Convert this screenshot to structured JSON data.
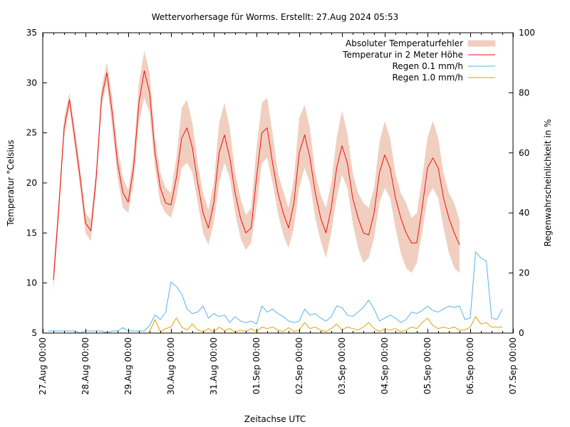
{
  "chart_data": {
    "type": "line",
    "title": "Wettervorhersage für Worms. Erstellt: 27.Aug 2024 05:53",
    "xlabel": "Zeitachse UTC",
    "ylabel": "Temperatur °Celsius",
    "y2label": "Regenwahrscheinlichkeit in %",
    "xlim_hours": [
      0,
      264
    ],
    "ylim": [
      5,
      35
    ],
    "y2lim": [
      0,
      100
    ],
    "xticks": [
      "27.Aug 00:00",
      "28.Aug 00:00",
      "29.Aug 00:00",
      "30.Aug 00:00",
      "31.Aug 00:00",
      "01.Sep 00:00",
      "02.Sep 00:00",
      "03.Sep 00:00",
      "04.Sep 00:00",
      "05.Sep 00:00",
      "06.Sep 00:00",
      "07.Sep 00:00"
    ],
    "yticks": [
      "5",
      "10",
      "15",
      "20",
      "25",
      "30",
      "35"
    ],
    "y2ticks": [
      "0",
      "20",
      "40",
      "60",
      "80",
      "100"
    ],
    "grid": false,
    "legend_position": "top-right",
    "legend": [
      {
        "label": "Absoluter Temperaturfehler",
        "color": "#f1cfc0",
        "kind": "band"
      },
      {
        "label": "Temperatur in 2 Meter Höhe",
        "color": "#ee1111",
        "kind": "line"
      },
      {
        "label": "Regen 0.1 mm/h",
        "color": "#56b4e9",
        "kind": "line"
      },
      {
        "label": "Regen 1.0 mm/h",
        "color": "#e69f00",
        "kind": "line"
      }
    ],
    "temperature": {
      "name": "Temperatur in 2 Meter Höhe",
      "hours": [
        6,
        9,
        12,
        15,
        18,
        21,
        24,
        27,
        30,
        33,
        36,
        39,
        42,
        45,
        48,
        51,
        54,
        57,
        60,
        63,
        66,
        69,
        72,
        75,
        78,
        81,
        84,
        87,
        90,
        93,
        96,
        99,
        102,
        105,
        108,
        111,
        114,
        117,
        120,
        123,
        126,
        129,
        132,
        135,
        138,
        141,
        144,
        147,
        150,
        153,
        156,
        159,
        162,
        165,
        168,
        171,
        174,
        177,
        180,
        183,
        186,
        189,
        192,
        195,
        198,
        201,
        204,
        207,
        210,
        213,
        216,
        219,
        222,
        225,
        228,
        231,
        234,
        237,
        240,
        243,
        246,
        249,
        252,
        255,
        258
      ],
      "values": [
        10.3,
        17.5,
        25.5,
        28.3,
        24.5,
        20.5,
        16.0,
        15.2,
        20.5,
        28.5,
        31.0,
        27.0,
        22.0,
        19.0,
        18.1,
        21.5,
        28.0,
        31.2,
        29.0,
        23.0,
        19.5,
        18.0,
        17.8,
        20.5,
        24.5,
        25.5,
        23.5,
        20.0,
        17.0,
        15.5,
        18.0,
        23.0,
        24.8,
        22.5,
        19.0,
        16.5,
        15.0,
        15.5,
        20.5,
        25.0,
        25.5,
        22.0,
        19.0,
        17.0,
        15.5,
        18.0,
        23.0,
        24.8,
        22.5,
        19.0,
        16.5,
        15.0,
        17.5,
        21.5,
        23.7,
        22.0,
        18.5,
        16.5,
        15.0,
        14.8,
        17.0,
        21.0,
        22.8,
        21.5,
        18.5,
        16.5,
        15.0,
        14.0,
        14.0,
        17.5,
        21.5,
        22.5,
        21.5,
        18.5,
        16.5,
        15.0,
        13.8,
        null,
        null,
        null,
        null,
        null,
        null,
        null,
        null
      ]
    },
    "temperature_error": {
      "name": "Absoluter Temperaturfehler",
      "lower": [
        9.2,
        16.5,
        24.5,
        27.5,
        23.5,
        19.5,
        15.0,
        14.2,
        19.5,
        27.5,
        30.0,
        25.5,
        20.5,
        17.5,
        17.0,
        20.0,
        26.0,
        28.5,
        27.0,
        21.5,
        18.0,
        17.0,
        16.5,
        18.5,
        21.5,
        22.0,
        21.0,
        18.0,
        15.0,
        13.8,
        16.0,
        20.0,
        22.0,
        20.5,
        17.0,
        14.5,
        13.3,
        14.0,
        17.5,
        22.0,
        22.5,
        20.0,
        17.0,
        14.8,
        13.5,
        15.5,
        19.5,
        21.5,
        20.0,
        16.5,
        14.2,
        12.5,
        15.0,
        18.5,
        20.8,
        19.5,
        16.0,
        13.5,
        12.0,
        12.5,
        14.5,
        18.0,
        19.5,
        18.5,
        15.5,
        13.0,
        11.5,
        11.0,
        12.0,
        15.0,
        18.5,
        19.5,
        18.5,
        15.5,
        13.0,
        11.5,
        11.0,
        null,
        null,
        null,
        null,
        null,
        null,
        null,
        null
      ],
      "upper": [
        11.5,
        18.5,
        26.5,
        29.0,
        25.5,
        21.5,
        17.0,
        16.3,
        21.5,
        29.5,
        32.0,
        28.5,
        23.5,
        20.5,
        19.3,
        23.0,
        30.0,
        33.2,
        31.0,
        24.5,
        21.0,
        19.5,
        19.0,
        22.5,
        27.5,
        28.3,
        26.0,
        22.0,
        19.0,
        17.3,
        20.0,
        26.0,
        28.0,
        25.5,
        21.0,
        18.5,
        16.8,
        17.5,
        23.5,
        28.0,
        28.5,
        25.0,
        21.0,
        19.2,
        17.5,
        20.5,
        26.5,
        27.8,
        25.5,
        21.0,
        18.8,
        17.5,
        20.0,
        24.5,
        27.2,
        25.0,
        21.0,
        19.0,
        18.0,
        17.5,
        19.5,
        24.0,
        26.2,
        24.5,
        21.0,
        19.0,
        18.0,
        16.5,
        17.0,
        20.5,
        24.5,
        26.2,
        24.5,
        21.0,
        19.0,
        18.0,
        16.3,
        null,
        null,
        null,
        null,
        null,
        null,
        null,
        null
      ]
    },
    "rain_01": {
      "name": "Regen 0.1 mm/h",
      "hours": [
        3,
        6,
        9,
        12,
        15,
        18,
        21,
        24,
        27,
        30,
        33,
        36,
        39,
        42,
        45,
        48,
        51,
        54,
        57,
        60,
        63,
        66,
        69,
        72,
        75,
        78,
        81,
        84,
        87,
        90,
        93,
        96,
        99,
        102,
        105,
        108,
        111,
        114,
        117,
        120,
        123,
        126,
        129,
        132,
        135,
        138,
        141,
        144,
        147,
        150,
        153,
        156,
        159,
        162,
        165,
        168,
        171,
        174,
        177,
        180,
        183,
        186,
        189,
        192,
        195,
        198,
        201,
        204,
        207,
        210,
        213,
        216,
        219,
        222,
        225,
        228,
        231,
        234,
        237,
        240,
        243,
        246,
        249,
        252,
        255,
        258
      ],
      "values": [
        0.7,
        0.7,
        0.7,
        0.7,
        0.7,
        0.7,
        0.0,
        0.7,
        0.7,
        0.7,
        0.7,
        0.0,
        0.7,
        0.7,
        1.8,
        0.7,
        0.7,
        0.7,
        0.7,
        2.5,
        6.0,
        4.5,
        7.0,
        17.0,
        15.5,
        13.0,
        8.0,
        6.5,
        7.0,
        9.0,
        5.0,
        6.5,
        5.5,
        6.0,
        3.5,
        5.5,
        4.0,
        3.5,
        4.0,
        3.0,
        9.0,
        7.0,
        8.0,
        6.5,
        5.5,
        4.0,
        3.5,
        4.0,
        8.0,
        6.0,
        6.5,
        5.0,
        4.0,
        5.5,
        9.0,
        8.5,
        6.0,
        5.5,
        7.0,
        8.5,
        11.0,
        8.0,
        4.0,
        5.0,
        6.0,
        5.0,
        3.5,
        4.5,
        7.0,
        6.5,
        7.5,
        9.0,
        7.5,
        7.0,
        8.0,
        9.0,
        8.5,
        9.0,
        4.5,
        5.0,
        27.0,
        25.0,
        24.0,
        5.0,
        4.5,
        8.0
      ]
    },
    "rain_10": {
      "name": "Regen 1.0 mm/h",
      "hours": [
        3,
        6,
        9,
        12,
        15,
        18,
        21,
        24,
        27,
        30,
        33,
        36,
        39,
        42,
        45,
        48,
        51,
        54,
        57,
        60,
        63,
        66,
        69,
        72,
        75,
        78,
        81,
        84,
        87,
        90,
        93,
        96,
        99,
        102,
        105,
        108,
        111,
        114,
        117,
        120,
        123,
        126,
        129,
        132,
        135,
        138,
        141,
        144,
        147,
        150,
        153,
        156,
        159,
        162,
        165,
        168,
        171,
        174,
        177,
        180,
        183,
        186,
        189,
        192,
        195,
        198,
        201,
        204,
        207,
        210,
        213,
        216,
        219,
        222,
        225,
        228,
        231,
        234,
        237,
        240,
        243,
        246,
        249,
        252,
        255,
        258
      ],
      "values": [
        null,
        null,
        null,
        null,
        null,
        null,
        null,
        null,
        null,
        null,
        null,
        null,
        null,
        null,
        null,
        null,
        null,
        null,
        null,
        0.5,
        4.5,
        0.5,
        1.5,
        2.0,
        5.0,
        2.0,
        1.0,
        3.0,
        1.0,
        0.5,
        1.5,
        0.3,
        2.0,
        0.8,
        1.5,
        0.3,
        1.0,
        0.5,
        1.5,
        0.5,
        2.0,
        1.5,
        2.0,
        1.0,
        0.5,
        1.8,
        0.5,
        1.0,
        3.5,
        1.5,
        2.0,
        1.0,
        0.5,
        1.5,
        3.0,
        1.0,
        2.0,
        1.5,
        1.0,
        2.0,
        3.5,
        1.5,
        0.5,
        1.5,
        1.0,
        1.5,
        0.5,
        1.0,
        2.0,
        1.5,
        3.5,
        5.0,
        2.5,
        1.5,
        2.0,
        1.5,
        2.0,
        1.0,
        1.0,
        2.0,
        5.5,
        3.0,
        3.5,
        2.0,
        2.0,
        2.0
      ]
    }
  }
}
